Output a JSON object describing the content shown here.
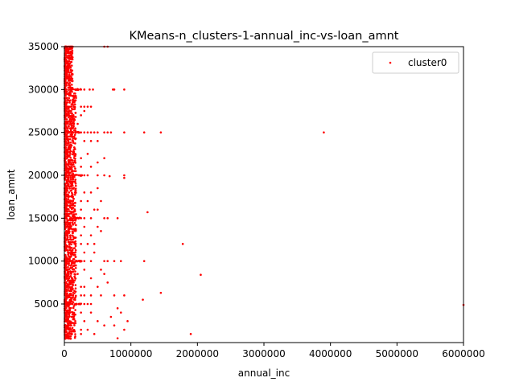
{
  "chart_data": {
    "type": "scatter",
    "title": "KMeans-n_clusters-1-annual_inc-vs-loan_amnt",
    "xlabel": "annual_inc",
    "ylabel": "loan_amnt",
    "xlim": [
      0,
      6000000
    ],
    "ylim": [
      500,
      35000
    ],
    "xticks": [
      0,
      1000000,
      2000000,
      3000000,
      4000000,
      5000000,
      6000000
    ],
    "xtick_labels": [
      "0",
      "1000000",
      "2000000",
      "3000000",
      "4000000",
      "5000000",
      "6000000"
    ],
    "yticks": [
      5000,
      10000,
      15000,
      20000,
      25000,
      30000,
      35000
    ],
    "ytick_labels": [
      "5000",
      "10000",
      "15000",
      "20000",
      "25000",
      "30000",
      "35000"
    ],
    "grid": false,
    "legend_position": "top-right",
    "series": [
      {
        "name": "cluster0",
        "color": "#ff0000",
        "points": [
          [
            600000,
            35000
          ],
          [
            650000,
            35000
          ],
          [
            200000,
            30000
          ],
          [
            250000,
            30000
          ],
          [
            300000,
            30000
          ],
          [
            380000,
            30000
          ],
          [
            430000,
            30000
          ],
          [
            730000,
            30000
          ],
          [
            750000,
            30000
          ],
          [
            900000,
            30000
          ],
          [
            250000,
            28000
          ],
          [
            300000,
            28000
          ],
          [
            350000,
            28000
          ],
          [
            400000,
            28000
          ],
          [
            200000,
            26000
          ],
          [
            250000,
            27000
          ],
          [
            300000,
            27500
          ],
          [
            250000,
            25000
          ],
          [
            300000,
            25000
          ],
          [
            350000,
            25000
          ],
          [
            400000,
            25000
          ],
          [
            450000,
            25000
          ],
          [
            500000,
            25000
          ],
          [
            600000,
            25000
          ],
          [
            650000,
            25000
          ],
          [
            700000,
            25000
          ],
          [
            900000,
            25000
          ],
          [
            1200000,
            25000
          ],
          [
            1450000,
            25000
          ],
          [
            3900000,
            25000
          ],
          [
            300000,
            24000
          ],
          [
            400000,
            24000
          ],
          [
            500000,
            24000
          ],
          [
            250000,
            22000
          ],
          [
            350000,
            22500
          ],
          [
            600000,
            22000
          ],
          [
            250000,
            21000
          ],
          [
            400000,
            21000
          ],
          [
            500000,
            21500
          ],
          [
            250000,
            20000
          ],
          [
            300000,
            20000
          ],
          [
            350000,
            20000
          ],
          [
            500000,
            20000
          ],
          [
            600000,
            20000
          ],
          [
            900000,
            20000
          ],
          [
            900000,
            19700
          ],
          [
            680000,
            19900
          ],
          [
            300000,
            18000
          ],
          [
            400000,
            18000
          ],
          [
            500000,
            18500
          ],
          [
            250000,
            17000
          ],
          [
            350000,
            17000
          ],
          [
            550000,
            17000
          ],
          [
            250000,
            16000
          ],
          [
            450000,
            16000
          ],
          [
            500000,
            16000
          ],
          [
            1250000,
            15700
          ],
          [
            250000,
            15000
          ],
          [
            300000,
            15000
          ],
          [
            400000,
            15000
          ],
          [
            600000,
            15000
          ],
          [
            650000,
            15000
          ],
          [
            800000,
            15000
          ],
          [
            300000,
            14000
          ],
          [
            500000,
            14000
          ],
          [
            250000,
            13000
          ],
          [
            400000,
            13000
          ],
          [
            550000,
            13500
          ],
          [
            250000,
            12000
          ],
          [
            350000,
            12000
          ],
          [
            450000,
            12000
          ],
          [
            1780000,
            12000
          ],
          [
            300000,
            11000
          ],
          [
            450000,
            11000
          ],
          [
            250000,
            10000
          ],
          [
            300000,
            10000
          ],
          [
            400000,
            10000
          ],
          [
            600000,
            10000
          ],
          [
            650000,
            10000
          ],
          [
            750000,
            10000
          ],
          [
            850000,
            10000
          ],
          [
            1200000,
            10000
          ],
          [
            300000,
            9000
          ],
          [
            550000,
            9000
          ],
          [
            200000,
            8500
          ],
          [
            400000,
            8000
          ],
          [
            600000,
            8500
          ],
          [
            650000,
            7500
          ],
          [
            2050000,
            8400
          ],
          [
            250000,
            7000
          ],
          [
            300000,
            7000
          ],
          [
            500000,
            7000
          ],
          [
            250000,
            6000
          ],
          [
            300000,
            6000
          ],
          [
            400000,
            6000
          ],
          [
            550000,
            6000
          ],
          [
            750000,
            6000
          ],
          [
            900000,
            6000
          ],
          [
            1450000,
            6300
          ],
          [
            1180000,
            5500
          ],
          [
            300000,
            5000
          ],
          [
            350000,
            5000
          ],
          [
            400000,
            5000
          ],
          [
            6000000,
            4900
          ],
          [
            250000,
            4000
          ],
          [
            400000,
            4000
          ],
          [
            800000,
            4500
          ],
          [
            850000,
            4000
          ],
          [
            950000,
            3000
          ],
          [
            300000,
            3000
          ],
          [
            500000,
            3000
          ],
          [
            700000,
            3500
          ],
          [
            600000,
            2500
          ],
          [
            250000,
            2000
          ],
          [
            350000,
            2000
          ],
          [
            750000,
            2500
          ],
          [
            900000,
            2000
          ],
          [
            250000,
            1500
          ],
          [
            450000,
            1500
          ],
          [
            1900000,
            1500
          ],
          [
            800000,
            1000
          ]
        ]
      }
    ]
  }
}
